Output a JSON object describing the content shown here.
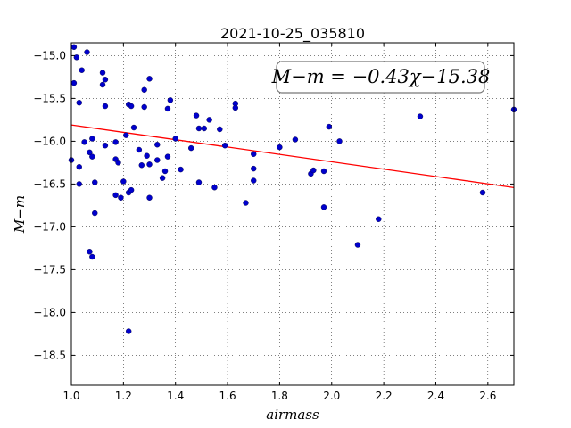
{
  "chart_data": {
    "type": "scatter",
    "title": "2021-10-25_035810",
    "xlabel": "airmass",
    "ylabel": "M−m",
    "xlim": [
      1.0,
      2.7
    ],
    "ylim": [
      -18.85,
      -14.85
    ],
    "y_inverted": true,
    "grid": true,
    "x_ticks": [
      "1.0",
      "1.2",
      "1.4",
      "1.6",
      "1.8",
      "2.0",
      "2.2",
      "2.4",
      "2.6"
    ],
    "y_ticks": [
      "−15.0",
      "−15.5",
      "−16.0",
      "−16.5",
      "−17.0",
      "−17.5",
      "−18.0",
      "−18.5"
    ],
    "x_tick_values": [
      1.0,
      1.2,
      1.4,
      1.6,
      1.8,
      2.0,
      2.2,
      2.4,
      2.6
    ],
    "y_tick_values": [
      -15.0,
      -15.5,
      -16.0,
      -16.5,
      -17.0,
      -17.5,
      -18.0,
      -18.5
    ],
    "annotation": "M−m = −0.43χ−15.38",
    "fit": {
      "slope": -0.43,
      "intercept": -15.38,
      "color": "#ff0000"
    },
    "point_color": "#0000cc",
    "points": [
      [
        1.0,
        -16.22
      ],
      [
        1.01,
        -14.9
      ],
      [
        1.01,
        -15.32
      ],
      [
        1.02,
        -15.02
      ],
      [
        1.03,
        -16.5
      ],
      [
        1.03,
        -16.3
      ],
      [
        1.03,
        -15.55
      ],
      [
        1.04,
        -15.17
      ],
      [
        1.05,
        -16.01
      ],
      [
        1.06,
        -14.96
      ],
      [
        1.07,
        -16.13
      ],
      [
        1.07,
        -17.29
      ],
      [
        1.08,
        -17.35
      ],
      [
        1.08,
        -15.97
      ],
      [
        1.08,
        -16.18
      ],
      [
        1.09,
        -16.48
      ],
      [
        1.09,
        -16.84
      ],
      [
        1.12,
        -15.2
      ],
      [
        1.12,
        -15.34
      ],
      [
        1.13,
        -15.28
      ],
      [
        1.13,
        -15.59
      ],
      [
        1.13,
        -16.05
      ],
      [
        1.17,
        -16.01
      ],
      [
        1.17,
        -16.63
      ],
      [
        1.17,
        -16.21
      ],
      [
        1.18,
        -16.25
      ],
      [
        1.19,
        -16.66
      ],
      [
        1.2,
        -16.47
      ],
      [
        1.21,
        -15.93
      ],
      [
        1.22,
        -16.6
      ],
      [
        1.22,
        -18.22
      ],
      [
        1.22,
        -15.57
      ],
      [
        1.23,
        -15.59
      ],
      [
        1.23,
        -16.57
      ],
      [
        1.24,
        -15.84
      ],
      [
        1.26,
        -16.1
      ],
      [
        1.27,
        -16.28
      ],
      [
        1.28,
        -15.4
      ],
      [
        1.28,
        -15.6
      ],
      [
        1.29,
        -16.17
      ],
      [
        1.3,
        -15.27
      ],
      [
        1.3,
        -16.27
      ],
      [
        1.3,
        -16.66
      ],
      [
        1.33,
        -16.04
      ],
      [
        1.33,
        -16.22
      ],
      [
        1.35,
        -16.43
      ],
      [
        1.36,
        -16.35
      ],
      [
        1.37,
        -15.62
      ],
      [
        1.37,
        -16.18
      ],
      [
        1.38,
        -15.52
      ],
      [
        1.4,
        -15.97
      ],
      [
        1.42,
        -16.33
      ],
      [
        1.46,
        -16.08
      ],
      [
        1.48,
        -15.7
      ],
      [
        1.49,
        -15.85
      ],
      [
        1.49,
        -16.48
      ],
      [
        1.51,
        -15.85
      ],
      [
        1.53,
        -15.75
      ],
      [
        1.55,
        -16.54
      ],
      [
        1.57,
        -15.86
      ],
      [
        1.59,
        -16.05
      ],
      [
        1.63,
        -15.56
      ],
      [
        1.63,
        -15.61
      ],
      [
        1.67,
        -16.72
      ],
      [
        1.7,
        -16.15
      ],
      [
        1.7,
        -16.32
      ],
      [
        1.7,
        -16.46
      ],
      [
        1.8,
        -16.07
      ],
      [
        1.86,
        -15.98
      ],
      [
        1.92,
        -16.38
      ],
      [
        1.93,
        -16.34
      ],
      [
        1.97,
        -16.35
      ],
      [
        1.97,
        -16.77
      ],
      [
        1.99,
        -15.83
      ],
      [
        2.03,
        -16.0
      ],
      [
        2.1,
        -17.21
      ],
      [
        2.18,
        -16.91
      ],
      [
        2.34,
        -15.71
      ],
      [
        2.58,
        -16.6
      ],
      [
        2.7,
        -15.63
      ]
    ]
  }
}
